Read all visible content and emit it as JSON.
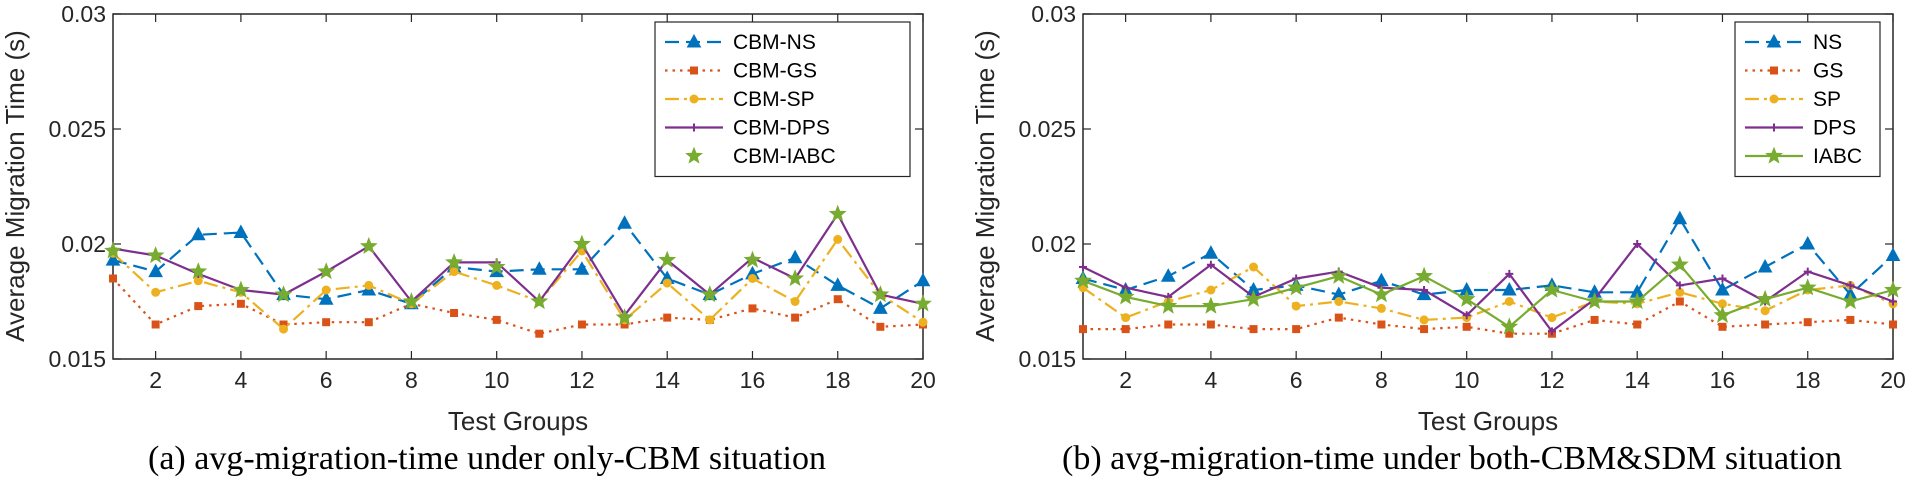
{
  "chart_data": [
    {
      "type": "line",
      "caption": "(a) avg-migration-time under only-CBM situation",
      "xlabel": "Test Groups",
      "ylabel": "Average Migration Time (s)",
      "xlim": [
        1,
        20
      ],
      "ylim": [
        0.015,
        0.03
      ],
      "xticks": [
        2,
        4,
        6,
        8,
        10,
        12,
        14,
        16,
        18,
        20
      ],
      "yticks": [
        0.015,
        0.02,
        0.025,
        0.03
      ],
      "ytick_labels": [
        "0.015",
        "0.02",
        "0.025",
        "0.03"
      ],
      "legend_position": "top-right",
      "x": [
        1,
        2,
        3,
        4,
        5,
        6,
        7,
        8,
        9,
        10,
        11,
        12,
        13,
        14,
        15,
        16,
        17,
        18,
        19,
        20
      ],
      "series": [
        {
          "name": "CBM-NS",
          "color": "#0072BD",
          "style": "dashed",
          "marker": "triangle",
          "values": [
            0.0193,
            0.0188,
            0.0204,
            0.0205,
            0.0178,
            0.0176,
            0.018,
            0.0174,
            0.019,
            0.0188,
            0.0189,
            0.0189,
            0.0209,
            0.0185,
            0.0178,
            0.0187,
            0.0194,
            0.0182,
            0.0172,
            0.0184
          ]
        },
        {
          "name": "CBM-GS",
          "color": "#D95319",
          "style": "dotted",
          "marker": "square",
          "values": [
            0.0185,
            0.0165,
            0.0173,
            0.0174,
            0.0165,
            0.0166,
            0.0166,
            0.0174,
            0.017,
            0.0167,
            0.0161,
            0.0165,
            0.0165,
            0.0168,
            0.0167,
            0.0172,
            0.0168,
            0.0176,
            0.0164,
            0.0165
          ]
        },
        {
          "name": "CBM-SP",
          "color": "#EDB120",
          "style": "dashdot",
          "marker": "circle",
          "values": [
            0.0196,
            0.0179,
            0.0184,
            0.0179,
            0.0163,
            0.018,
            0.0182,
            0.0174,
            0.0188,
            0.0182,
            0.0175,
            0.0197,
            0.0167,
            0.0183,
            0.0167,
            0.0185,
            0.0175,
            0.0202,
            0.0178,
            0.0166
          ]
        },
        {
          "name": "CBM-DPS",
          "color": "#7E2F8E",
          "style": "solid",
          "marker": "plus",
          "values": [
            0.0198,
            0.0195,
            0.0187,
            0.018,
            0.0178,
            0.0188,
            0.0199,
            0.0175,
            0.0192,
            0.0192,
            0.0175,
            0.02,
            0.0169,
            0.0193,
            0.0178,
            0.0194,
            0.0185,
            0.0213,
            0.0178,
            0.0174
          ]
        },
        {
          "name": "CBM-IABC",
          "color": "#77AC30",
          "style": "none",
          "marker": "star",
          "values": [
            0.0197,
            0.0195,
            0.0188,
            0.018,
            0.0178,
            0.0188,
            0.0199,
            0.0175,
            0.0192,
            0.019,
            0.0175,
            0.02,
            0.0168,
            0.0193,
            0.0178,
            0.0193,
            0.0185,
            0.0213,
            0.0178,
            0.0174
          ]
        }
      ]
    },
    {
      "type": "line",
      "caption": "(b) avg-migration-time under both-CBM&SDM situation",
      "xlabel": "Test Groups",
      "ylabel": "Average Migration Time (s)",
      "xlim": [
        1,
        20
      ],
      "ylim": [
        0.015,
        0.03
      ],
      "xticks": [
        2,
        4,
        6,
        8,
        10,
        12,
        14,
        16,
        18,
        20
      ],
      "yticks": [
        0.015,
        0.02,
        0.025,
        0.03
      ],
      "ytick_labels": [
        "0.015",
        "0.02",
        "0.025",
        "0.03"
      ],
      "legend_position": "top-right",
      "x": [
        1,
        2,
        3,
        4,
        5,
        6,
        7,
        8,
        9,
        10,
        11,
        12,
        13,
        14,
        15,
        16,
        17,
        18,
        19,
        20
      ],
      "series": [
        {
          "name": "NS",
          "color": "#0072BD",
          "style": "dashed",
          "marker": "triangle",
          "values": [
            0.0185,
            0.018,
            0.0186,
            0.0196,
            0.018,
            0.0182,
            0.0178,
            0.0184,
            0.0178,
            0.018,
            0.018,
            0.0182,
            0.0179,
            0.0179,
            0.0211,
            0.018,
            0.019,
            0.02,
            0.0178,
            0.0195
          ]
        },
        {
          "name": "GS",
          "color": "#D95319",
          "style": "dotted",
          "marker": "square",
          "values": [
            0.0163,
            0.0163,
            0.0165,
            0.0165,
            0.0163,
            0.0163,
            0.0168,
            0.0165,
            0.0163,
            0.0164,
            0.0161,
            0.0161,
            0.0167,
            0.0165,
            0.0175,
            0.0164,
            0.0165,
            0.0166,
            0.0167,
            0.0165
          ]
        },
        {
          "name": "SP",
          "color": "#EDB120",
          "style": "dashdot",
          "marker": "circle",
          "values": [
            0.0181,
            0.0168,
            0.0175,
            0.018,
            0.019,
            0.0173,
            0.0175,
            0.0172,
            0.0167,
            0.0168,
            0.0175,
            0.0168,
            0.0175,
            0.0174,
            0.0179,
            0.0174,
            0.0171,
            0.018,
            0.0182,
            0.0174
          ]
        },
        {
          "name": "DPS",
          "color": "#7E2F8E",
          "style": "solid",
          "marker": "plus",
          "values": [
            0.019,
            0.0181,
            0.0177,
            0.0191,
            0.0177,
            0.0185,
            0.0188,
            0.0181,
            0.018,
            0.0169,
            0.0187,
            0.0162,
            0.0176,
            0.02,
            0.0182,
            0.0185,
            0.0175,
            0.0188,
            0.0182,
            0.0175
          ]
        },
        {
          "name": "IABC",
          "color": "#77AC30",
          "style": "solid",
          "marker": "star",
          "values": [
            0.0184,
            0.0177,
            0.0173,
            0.0173,
            0.0176,
            0.0181,
            0.0186,
            0.0178,
            0.0186,
            0.0176,
            0.0164,
            0.018,
            0.0175,
            0.0175,
            0.0191,
            0.0169,
            0.0176,
            0.0181,
            0.0175,
            0.018
          ]
        }
      ]
    }
  ]
}
